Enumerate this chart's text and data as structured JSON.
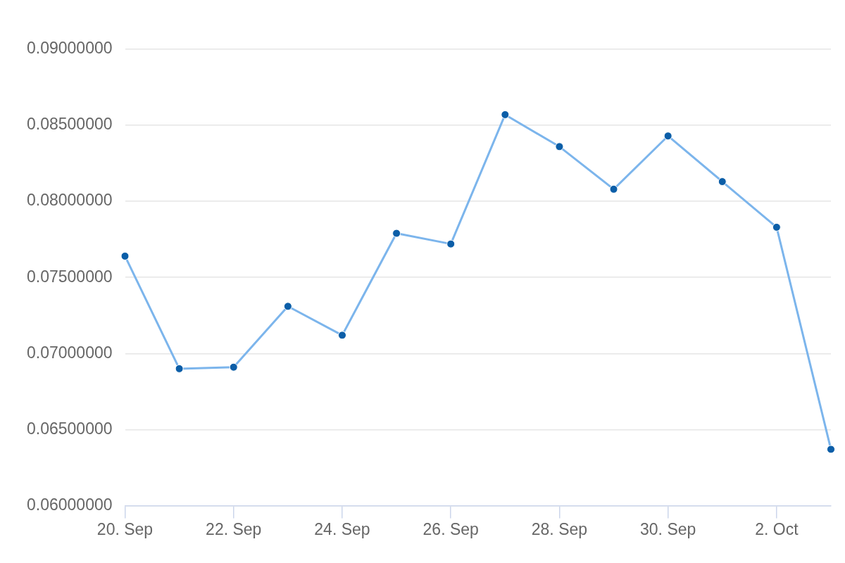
{
  "chart_data": {
    "type": "line",
    "x": [
      "--09-20",
      "--09-21",
      "--09-22",
      "--09-23",
      "--09-24",
      "--09-25",
      "--09-26",
      "--09-27",
      "--09-28",
      "--09-29",
      "--09-30",
      "--10-01",
      "--10-02",
      "--10-03"
    ],
    "series": [
      {
        "color": "#7cb5ec",
        "values": [
          0.0764,
          0.069,
          0.0691,
          0.0731,
          0.0712,
          0.0779,
          0.0772,
          0.0857,
          0.0836,
          0.0808,
          0.0843,
          0.0813,
          0.0783,
          0.0637
        ]
      }
    ],
    "xlim": [
      "--09-20",
      "--10-03"
    ],
    "xticks": [
      {
        "value": "--09-20",
        "label": "20. Sep"
      },
      {
        "value": "--09-22",
        "label": "22. Sep"
      },
      {
        "value": "--09-24",
        "label": "24. Sep"
      },
      {
        "value": "--09-26",
        "label": "26. Sep"
      },
      {
        "value": "--09-28",
        "label": "28. Sep"
      },
      {
        "value": "--09-30",
        "label": "30. Sep"
      },
      {
        "value": "--10-02",
        "label": "2. Oct"
      }
    ],
    "ylim": [
      0.06,
      0.09
    ],
    "yticks": [
      {
        "value": 0.06,
        "label": "0.06000000"
      },
      {
        "value": 0.065,
        "label": "0.06500000"
      },
      {
        "value": 0.07,
        "label": "0.07000000"
      },
      {
        "value": 0.075,
        "label": "0.07500000"
      },
      {
        "value": 0.08,
        "label": "0.08000000"
      },
      {
        "value": 0.085,
        "label": "0.08500000"
      },
      {
        "value": 0.09,
        "label": "0.09000000"
      }
    ],
    "grid": "y",
    "legend": false,
    "marker": "circle",
    "line_style": "solid"
  }
}
